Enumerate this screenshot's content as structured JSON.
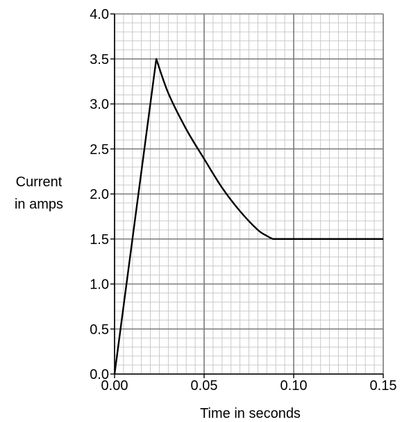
{
  "chart_data": {
    "type": "line",
    "title": "",
    "xlabel": "Time in seconds",
    "ylabel_lines": [
      "Current",
      "in amps"
    ],
    "xlim": [
      0,
      0.15
    ],
    "ylim": [
      0,
      4.0
    ],
    "x_ticks": [
      0.0,
      0.05,
      0.1,
      0.15
    ],
    "x_tick_labels": [
      "0.00",
      "0.05",
      "0.10",
      "0.15"
    ],
    "y_ticks": [
      0.0,
      0.5,
      1.0,
      1.5,
      2.0,
      2.5,
      3.0,
      3.5,
      4.0
    ],
    "y_tick_labels": [
      "0.0",
      "0.5",
      "1.0",
      "1.5",
      "2.0",
      "2.5",
      "3.0",
      "3.5",
      "4.0"
    ],
    "grid": true,
    "minor_grid_per_major_x": 10,
    "minor_grid_per_major_y": 5,
    "series": [
      {
        "x": [
          0.0,
          0.0233,
          0.03,
          0.04,
          0.05,
          0.06,
          0.07,
          0.08,
          0.085,
          0.0883,
          0.1,
          0.12,
          0.15
        ],
        "y": [
          0.0,
          3.5,
          3.12,
          2.72,
          2.39,
          2.07,
          1.81,
          1.6,
          1.535,
          1.5,
          1.5,
          1.5,
          1.5
        ]
      }
    ],
    "colors": {
      "line": "#000000",
      "major_grid": "#7a7a7a",
      "minor_grid": "#c4c4c4",
      "axis": "#000000"
    }
  }
}
